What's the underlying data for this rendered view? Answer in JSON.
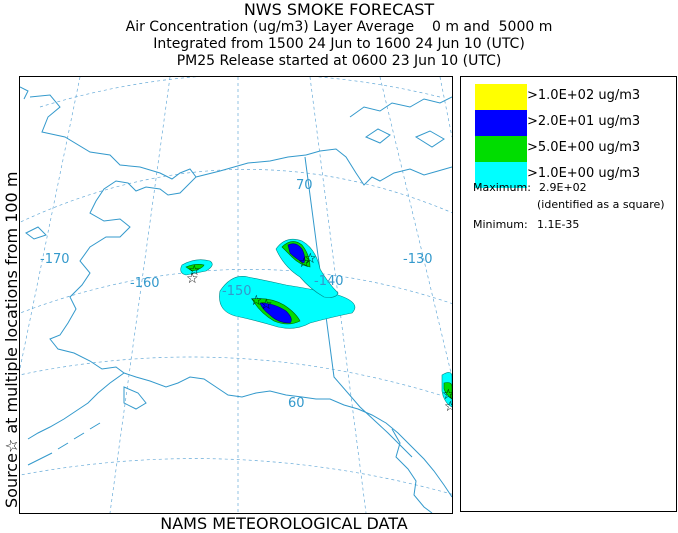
{
  "header": {
    "title": "NWS SMOKE FORECAST",
    "line2": "Air Concentration (ug/m3) Layer Average    0 m and  5000 m",
    "line3": "Integrated from 1500 24 Jun to 1600 24 Jun 10 (UTC)",
    "line4": "PM25 Release started at 0600 23 Jun 10 (UTC)"
  },
  "side_label": "Source☆   at multiple locations   from   100 m",
  "footer": "NAMS METEOROLOGICAL DATA",
  "map": {
    "lon_labels": [
      "-170",
      "-160",
      "-150",
      "-140",
      "-130"
    ],
    "lat_labels": [
      "70",
      "60"
    ],
    "source_marker": "☆",
    "colors": {
      "coast": "#3399cc",
      "grid": "#66aad8"
    }
  },
  "legend": {
    "items": [
      {
        "label": ">1.0E+02 ug/m3",
        "color": "#ffff00"
      },
      {
        "label": ">2.0E+01 ug/m3",
        "color": "#0000ff"
      },
      {
        "label": ">5.0E+00 ug/m3",
        "color": "#00dd00"
      },
      {
        "label": ">1.0E+00 ug/m3",
        "color": "#00ffff"
      }
    ],
    "maximum_label": "Maximum:",
    "maximum_value": "2.9E+02",
    "maximum_note": "(identified as a square)",
    "minimum_label": "Minimum:",
    "minimum_value": "1.1E-35"
  }
}
